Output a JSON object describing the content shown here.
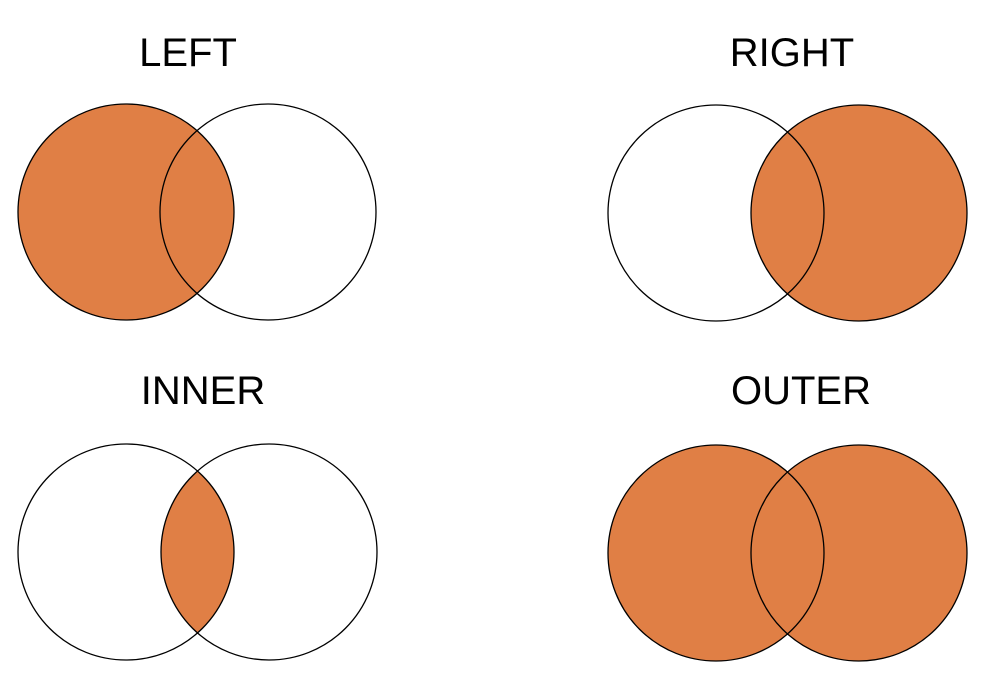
{
  "fill_color": "#E07F45",
  "outline_color": "#000000",
  "background_color": "#FFFFFF",
  "panels": [
    {
      "title": "LEFT",
      "highlight": "left-circle"
    },
    {
      "title": "RIGHT",
      "highlight": "right-circle"
    },
    {
      "title": "INNER",
      "highlight": "intersection"
    },
    {
      "title": "OUTER",
      "highlight": "both-circles"
    }
  ]
}
